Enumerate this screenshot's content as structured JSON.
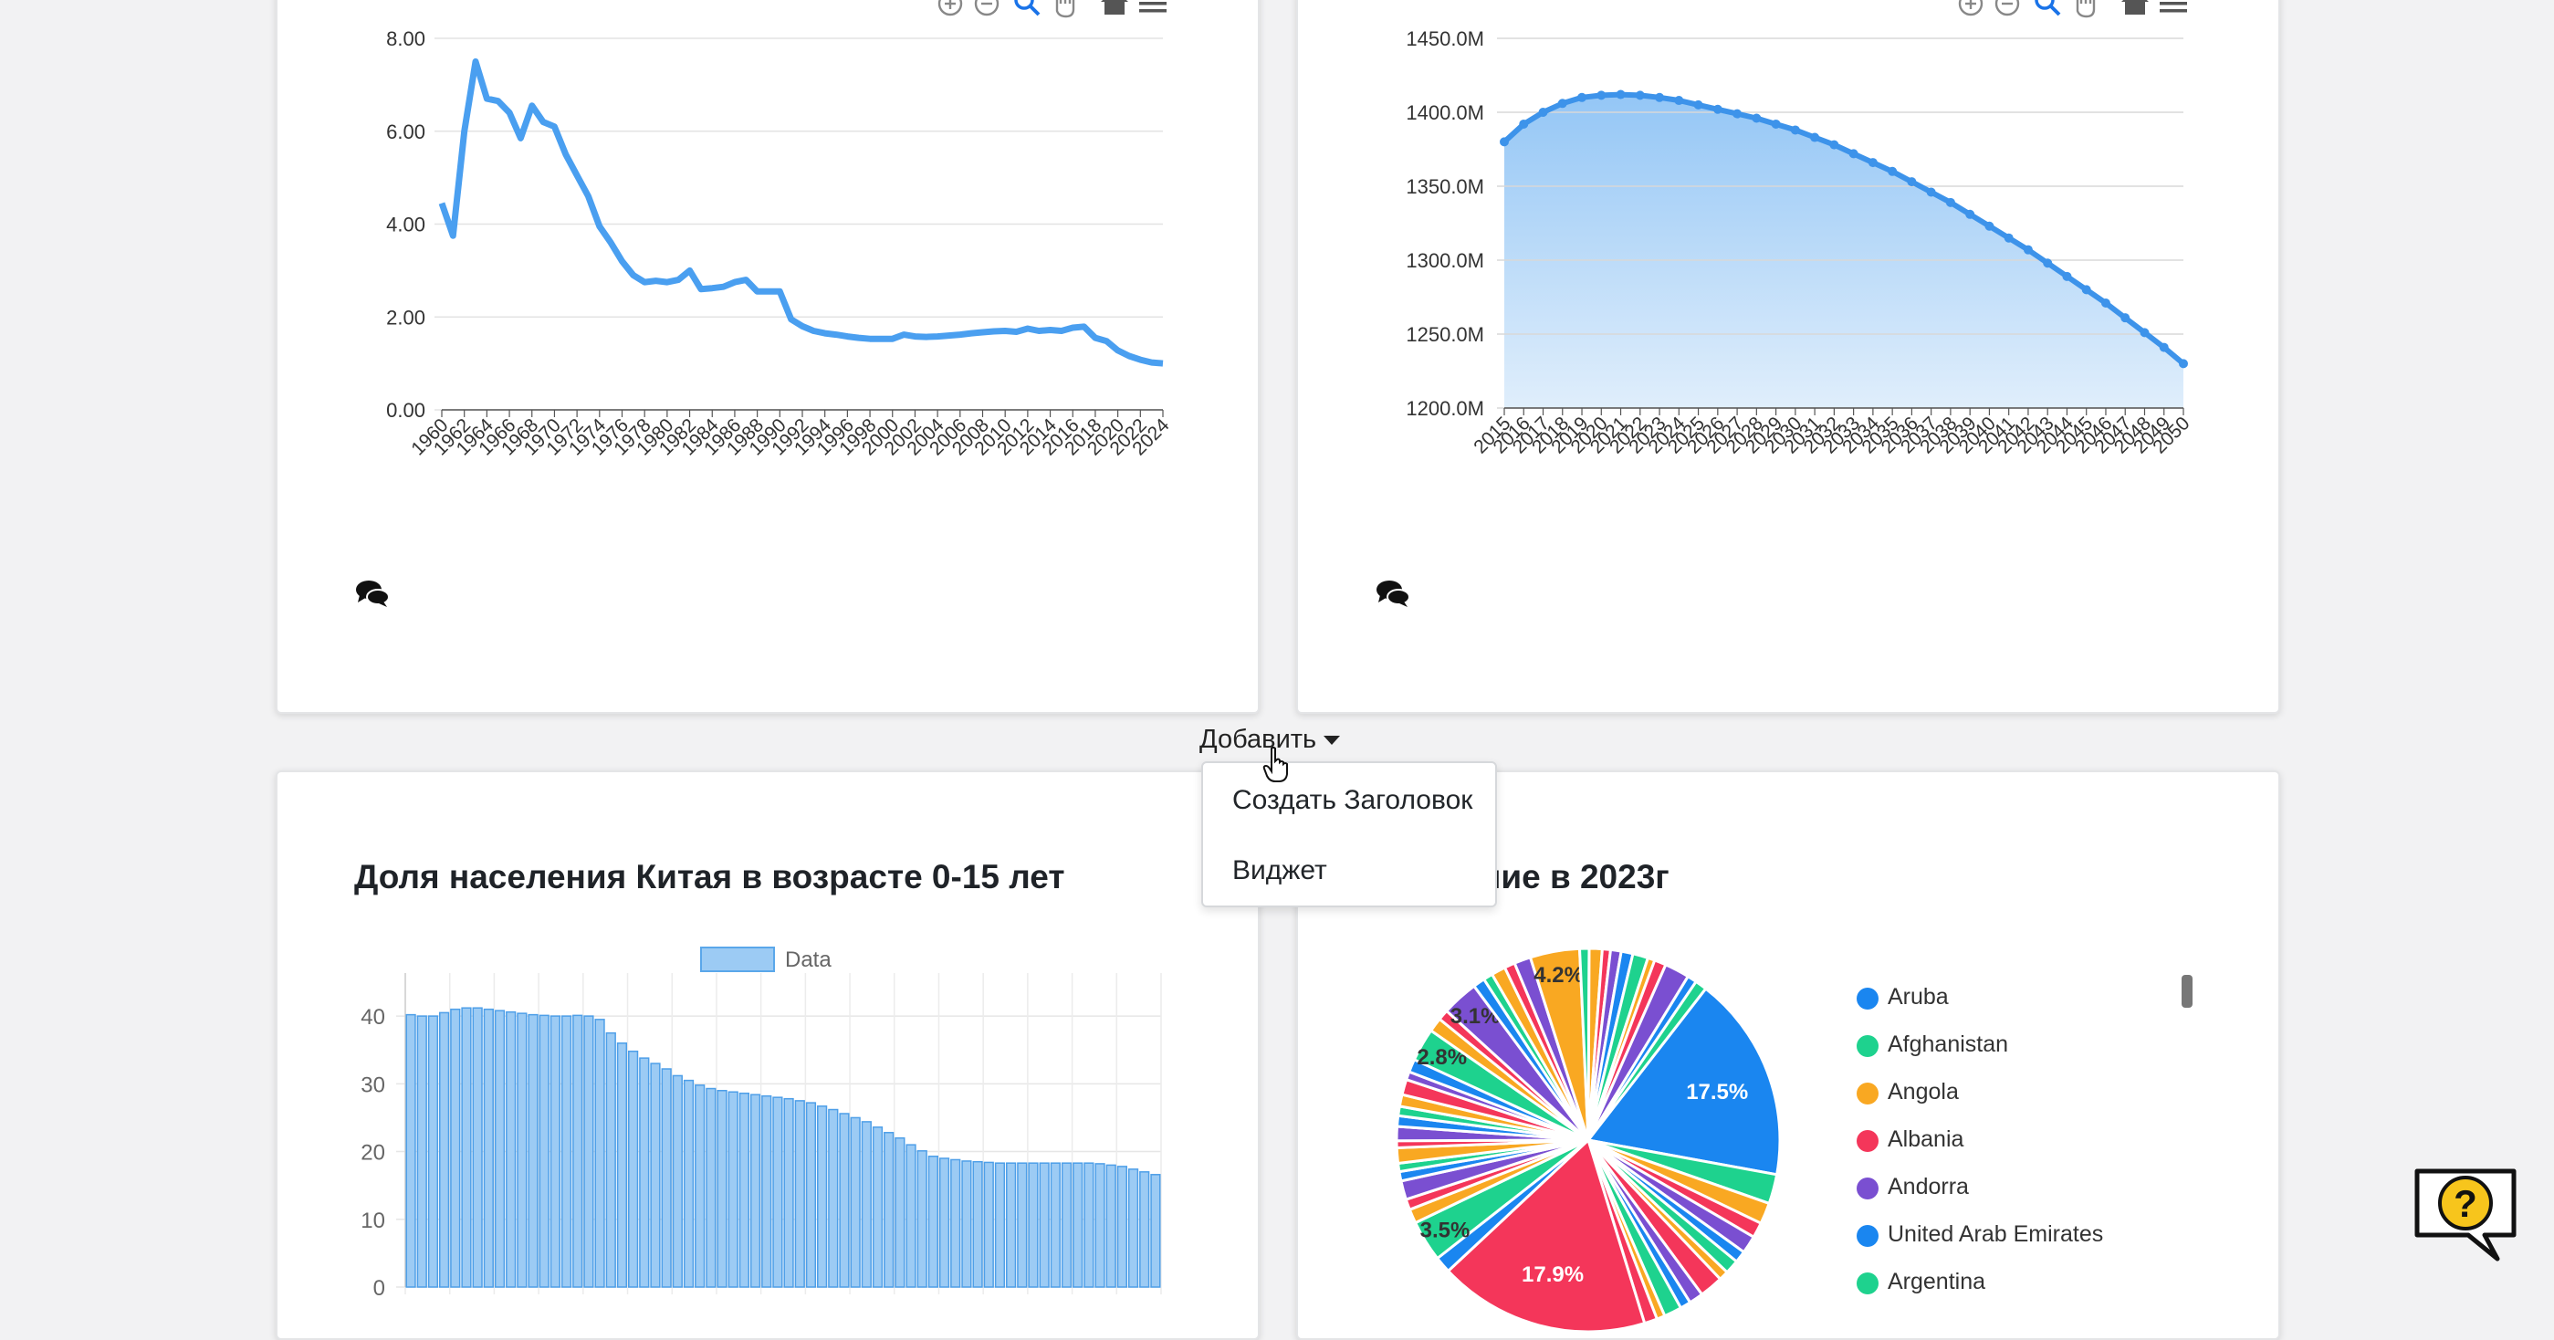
{
  "page": {
    "add_button": "Добавить",
    "dropdown_items": [
      "Создать Заголовок",
      "Виджет"
    ]
  },
  "charts": {
    "fertility": {
      "yticks": [
        "0.00",
        "2.00",
        "4.00",
        "6.00",
        "8.00"
      ],
      "xticks": [
        "1960",
        "1962",
        "1964",
        "1966",
        "1968",
        "1970",
        "1972",
        "1974",
        "1976",
        "1978",
        "1980",
        "1982",
        "1984",
        "1986",
        "1988",
        "1990",
        "1992",
        "1994",
        "1996",
        "1998",
        "2000",
        "2002",
        "2004",
        "2006",
        "2008",
        "2010",
        "2012",
        "2014",
        "2016",
        "2018",
        "2020",
        "2022",
        "2024"
      ]
    },
    "population": {
      "yticks": [
        "1200.0M",
        "1250.0M",
        "1300.0M",
        "1350.0M",
        "1400.0M",
        "1450.0M"
      ],
      "xticks": [
        "2015",
        "2016",
        "2017",
        "2018",
        "2019",
        "2020",
        "2021",
        "2022",
        "2023",
        "2024",
        "2025",
        "2026",
        "2027",
        "2028",
        "2029",
        "2030",
        "2031",
        "2032",
        "2033",
        "2034",
        "2035",
        "2036",
        "2037",
        "2038",
        "2039",
        "2040",
        "2041",
        "2042",
        "2043",
        "2044",
        "2045",
        "2046",
        "2047",
        "2048",
        "2049",
        "2050"
      ]
    },
    "children_share": {
      "title": "Доля населения Китая в возрасте 0-15 лет",
      "legend": "Data",
      "yticks": [
        "0",
        "10",
        "20",
        "30",
        "40"
      ]
    },
    "pie": {
      "title_visible": "ние в 2023г",
      "legend": [
        {
          "name": "Aruba",
          "color": "#1a86f0"
        },
        {
          "name": "Afghanistan",
          "color": "#1ed28e"
        },
        {
          "name": "Angola",
          "color": "#f9a822"
        },
        {
          "name": "Albania",
          "color": "#f4365a"
        },
        {
          "name": "Andorra",
          "color": "#7a4fd1"
        },
        {
          "name": "United Arab Emirates",
          "color": "#1a86f0"
        },
        {
          "name": "Argentina",
          "color": "#1ed28e"
        }
      ],
      "labels": [
        "17.5%",
        "17.9%",
        "4.2%",
        "3.1%",
        "2.8%",
        "3.5%"
      ]
    }
  },
  "chart_data": [
    {
      "type": "line",
      "x": [
        1960,
        1961,
        1962,
        1963,
        1964,
        1965,
        1966,
        1967,
        1968,
        1969,
        1970,
        1971,
        1972,
        1973,
        1974,
        1975,
        1976,
        1977,
        1978,
        1979,
        1980,
        1981,
        1982,
        1983,
        1984,
        1985,
        1986,
        1987,
        1988,
        1989,
        1990,
        1991,
        1992,
        1993,
        1994,
        1995,
        1996,
        1997,
        1998,
        1999,
        2000,
        2001,
        2002,
        2003,
        2004,
        2005,
        2006,
        2007,
        2008,
        2009,
        2010,
        2011,
        2012,
        2013,
        2014,
        2015,
        2016,
        2017,
        2018,
        2019,
        2020,
        2021,
        2022,
        2023,
        2024
      ],
      "values": [
        4.45,
        3.75,
        6.0,
        7.5,
        6.7,
        6.65,
        6.4,
        5.85,
        6.55,
        6.2,
        6.1,
        5.5,
        5.05,
        4.6,
        3.95,
        3.6,
        3.2,
        2.9,
        2.75,
        2.78,
        2.75,
        2.8,
        3.0,
        2.6,
        2.62,
        2.65,
        2.75,
        2.8,
        2.55,
        2.55,
        2.55,
        1.95,
        1.8,
        1.7,
        1.65,
        1.62,
        1.58,
        1.55,
        1.53,
        1.53,
        1.53,
        1.62,
        1.58,
        1.57,
        1.58,
        1.6,
        1.62,
        1.65,
        1.67,
        1.69,
        1.7,
        1.68,
        1.75,
        1.7,
        1.72,
        1.7,
        1.77,
        1.79,
        1.55,
        1.48,
        1.28,
        1.16,
        1.08,
        1.02,
        1.0
      ],
      "ylim": [
        0,
        8
      ]
    },
    {
      "type": "area",
      "x": [
        2015,
        2016,
        2017,
        2018,
        2019,
        2020,
        2021,
        2022,
        2023,
        2024,
        2025,
        2026,
        2027,
        2028,
        2029,
        2030,
        2031,
        2032,
        2033,
        2034,
        2035,
        2036,
        2037,
        2038,
        2039,
        2040,
        2041,
        2042,
        2043,
        2044,
        2045,
        2046,
        2047,
        2048,
        2049,
        2050
      ],
      "values": [
        1380,
        1392,
        1400,
        1406,
        1410,
        1411.5,
        1412,
        1411.5,
        1410,
        1408,
        1405,
        1402,
        1399,
        1396,
        1392,
        1388,
        1383,
        1378,
        1372,
        1366,
        1360,
        1353,
        1346,
        1339,
        1331,
        1323,
        1315,
        1307,
        1298,
        1289,
        1280,
        1271,
        1261,
        1251,
        1241,
        1230
      ],
      "ylim": [
        1200,
        1450
      ]
    },
    {
      "type": "bar",
      "series": [
        {
          "name": "Data",
          "values": [
            40.2,
            40,
            40,
            40.5,
            41,
            41.2,
            41.2,
            41,
            40.8,
            40.6,
            40.4,
            40.2,
            40.1,
            40,
            40,
            40.1,
            40,
            39.5,
            37.5,
            36,
            34.8,
            33.8,
            33,
            32.2,
            31.2,
            30.5,
            29.8,
            29.3,
            29,
            28.8,
            28.6,
            28.4,
            28.2,
            28,
            27.8,
            27.5,
            27.2,
            26.7,
            26.2,
            25.6,
            25,
            24.4,
            23.6,
            22.8,
            22,
            21,
            20.1,
            19.3,
            19,
            18.8,
            18.6,
            18.5,
            18.4,
            18.3,
            18.3,
            18.3,
            18.3,
            18.3,
            18.3,
            18.3,
            18.3,
            18.3,
            18.2,
            18,
            17.8,
            17.4,
            17,
            16.6
          ]
        }
      ],
      "ylim": [
        0,
        45
      ]
    },
    {
      "type": "pie",
      "values": [
        17.5,
        2.5,
        1.8,
        1.3,
        1.5,
        1.0,
        1.2,
        0.8,
        2.0,
        1.2,
        0.9,
        1.5,
        0.7,
        1.1,
        17.9,
        1.4,
        3.5,
        1.2,
        0.9,
        1.6,
        0.8,
        0.7,
        1.3,
        0.6,
        1.2,
        0.9,
        0.8,
        1.0,
        1.3,
        0.7,
        1.1,
        2.8,
        1.2,
        0.9,
        3.1,
        1.0,
        0.8,
        1.2,
        0.9,
        1.4,
        4.2,
        0.8,
        1.1,
        0.7,
        0.9,
        1.0,
        1.3,
        0.6,
        1.0,
        2.1,
        0.8,
        1.0
      ]
    }
  ]
}
